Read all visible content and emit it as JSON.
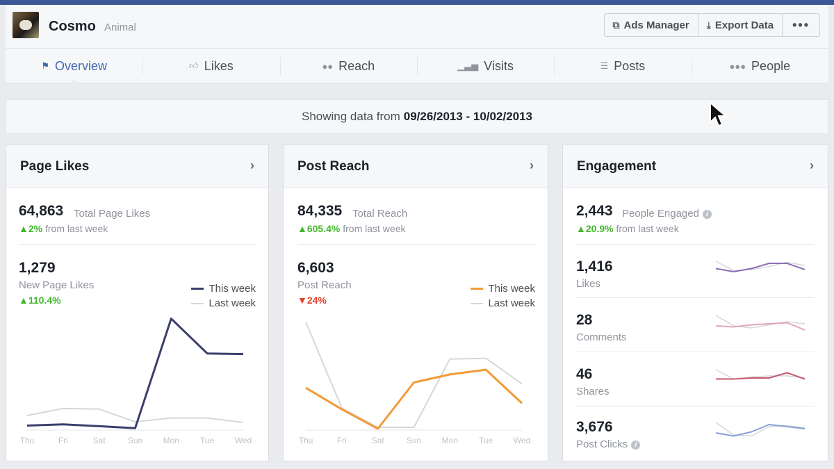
{
  "page": {
    "name": "Cosmo",
    "category": "Animal"
  },
  "actions": {
    "ads_manager": "Ads Manager",
    "export_data": "Export Data",
    "more": "•••"
  },
  "tabs": [
    {
      "label": "Overview",
      "icon": "flag-icon",
      "active": true
    },
    {
      "label": "Likes",
      "icon": "thumbs-up-icon"
    },
    {
      "label": "Reach",
      "icon": "people-icon"
    },
    {
      "label": "Visits",
      "icon": "bar-chart-icon"
    },
    {
      "label": "Posts",
      "icon": "list-icon"
    },
    {
      "label": "People",
      "icon": "group-icon"
    }
  ],
  "date_range": {
    "prefix": "Showing data from",
    "range": "09/26/2013 - 10/02/2013"
  },
  "colors": {
    "this_week_likes": "#3b3f6b",
    "this_week_reach": "#f29a38",
    "last_week": "#d5d7db",
    "positive": "#42b72a",
    "negative": "#e4402c",
    "accent": "#4267b2"
  },
  "page_likes": {
    "title": "Page Likes",
    "total_value": "64,863",
    "total_label": "Total Page Likes",
    "total_change": "2%",
    "total_change_label": "from last week",
    "new_value": "1,279",
    "new_label": "New Page Likes",
    "new_change": "110.4%",
    "legend_this": "This week",
    "legend_last": "Last week"
  },
  "post_reach": {
    "title": "Post Reach",
    "total_value": "84,335",
    "total_label": "Total Reach",
    "total_change": "605.4%",
    "total_change_label": "from last week",
    "new_value": "6,603",
    "new_label": "Post Reach",
    "new_change": "24%",
    "legend_this": "This week",
    "legend_last": "Last week"
  },
  "engagement": {
    "title": "Engagement",
    "total_value": "2,443",
    "total_label": "People Engaged",
    "total_change": "20.9%",
    "total_change_label": "from last week",
    "rows": [
      {
        "value": "1,416",
        "label": "Likes",
        "color": "#8b6fb5",
        "this": [
          0.45,
          0.6,
          0.45,
          0.2,
          0.2,
          0.5
        ],
        "last": [
          0.1,
          0.55,
          0.5,
          0.35,
          0.15,
          0.3
        ]
      },
      {
        "value": "28",
        "label": "Comments",
        "color": "#e3a4bd",
        "this": [
          0.6,
          0.65,
          0.55,
          0.5,
          0.45,
          0.8
        ],
        "last": [
          0.1,
          0.6,
          0.7,
          0.55,
          0.4,
          0.5
        ]
      },
      {
        "value": "46",
        "label": "Shares",
        "color": "#c9586e",
        "this": [
          0.55,
          0.55,
          0.5,
          0.5,
          0.25,
          0.55
        ],
        "last": [
          0.1,
          0.55,
          0.45,
          0.4,
          0.4,
          0.5
        ]
      },
      {
        "value": "3,676",
        "label": "Post Clicks",
        "color": "#8a9fd6",
        "this": [
          0.6,
          0.75,
          0.55,
          0.2,
          0.3,
          0.4
        ],
        "last": [
          0.1,
          0.7,
          0.75,
          0.3,
          0.25,
          0.35
        ]
      }
    ]
  },
  "chart_data": [
    {
      "type": "line",
      "title": "New Page Likes",
      "categories": [
        "Thu",
        "Fri",
        "Sat",
        "Sun",
        "Mon",
        "Tue",
        "Wed"
      ],
      "ylim": [
        0,
        180
      ],
      "series": [
        {
          "name": "This week",
          "values": [
            6,
            8,
            5,
            2,
            175,
            120,
            119
          ]
        },
        {
          "name": "Last week",
          "values": [
            22,
            33,
            32,
            12,
            18,
            18,
            11
          ]
        }
      ]
    },
    {
      "type": "line",
      "title": "Post Reach",
      "categories": [
        "Thu",
        "Fri",
        "Sat",
        "Sun",
        "Mon",
        "Tue",
        "Wed"
      ],
      "ylim": [
        0,
        1700
      ],
      "series": [
        {
          "name": "This week",
          "values": [
            620,
            300,
            10,
            700,
            820,
            890,
            390
          ]
        },
        {
          "name": "Last week",
          "values": [
            1600,
            320,
            30,
            30,
            1050,
            1060,
            680
          ]
        }
      ]
    }
  ]
}
